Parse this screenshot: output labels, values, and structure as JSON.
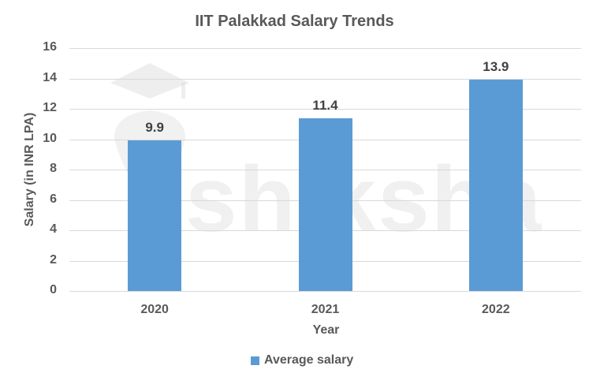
{
  "chart_data": {
    "type": "bar",
    "title": "IIT Palakkad Salary Trends",
    "xlabel": "Year",
    "ylabel": "Salary (in INR LPA)",
    "categories": [
      "2020",
      "2021",
      "2022"
    ],
    "series": [
      {
        "name": "Average salary",
        "values": [
          9.9,
          11.4,
          13.9
        ],
        "color": "#5b9bd5"
      }
    ],
    "ylim": [
      0,
      16
    ],
    "yticks": [
      "0",
      "2",
      "4",
      "6",
      "8",
      "10",
      "12",
      "14",
      "16"
    ],
    "data_labels": [
      "9.9",
      "11.4",
      "13.9"
    ],
    "grid": true,
    "legend_position": "bottom",
    "watermark": "shiksha"
  }
}
